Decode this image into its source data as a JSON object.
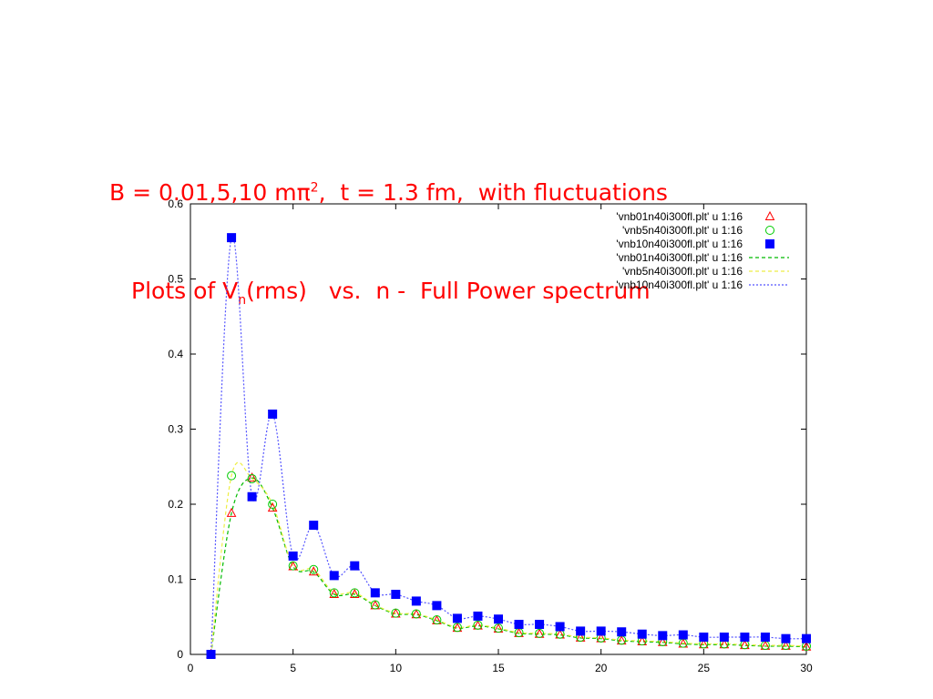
{
  "title": {
    "line1_prefix": "B = 0.01,5,10 m",
    "line1_pi": "π",
    "line1_sup": "2",
    "line1_suffix": ",  t = 1.3 fm,  with fluctuations",
    "line2_prefix": "Plots of V",
    "line2_sub": "n",
    "line2_suffix": "(rms)   vs.  n -  Full Power spectrum",
    "color": "#ff0000"
  },
  "chart_data": {
    "type": "scatter",
    "title": "",
    "xlabel": "",
    "ylabel": "",
    "xlim": [
      0,
      30
    ],
    "ylim": [
      0,
      0.6
    ],
    "xticks": [
      "0",
      "5",
      "10",
      "15",
      "20",
      "25",
      "30"
    ],
    "yticks": [
      "0",
      "0.1",
      "0.2",
      "0.3",
      "0.4",
      "0.5",
      "0.6"
    ],
    "grid": false,
    "legend_position": "top-right",
    "series": [
      {
        "name": "'vnb01n40i300fl.plt' u 1:16",
        "style": "points",
        "marker": "triangle",
        "color": "#ff0000",
        "x": [
          1,
          2,
          3,
          4,
          5,
          6,
          7,
          8,
          9,
          10,
          11,
          12,
          13,
          14,
          15,
          16,
          17,
          18,
          19,
          20,
          21,
          22,
          23,
          24,
          25,
          26,
          27,
          28,
          29,
          30
        ],
        "y": [
          0,
          0.188,
          0.235,
          0.195,
          0.117,
          0.11,
          0.08,
          0.08,
          0.065,
          0.054,
          0.053,
          0.045,
          0.035,
          0.038,
          0.034,
          0.028,
          0.027,
          0.026,
          0.022,
          0.021,
          0.018,
          0.017,
          0.016,
          0.014,
          0.013,
          0.013,
          0.012,
          0.011,
          0.011,
          0.01
        ]
      },
      {
        "name": "'vnb5n40i300fl.plt' u 1:16",
        "style": "points",
        "marker": "circle",
        "color": "#00cc00",
        "x": [
          1,
          2,
          3,
          4,
          5,
          6,
          7,
          8,
          9,
          10,
          11,
          12,
          13,
          14,
          15,
          16,
          17,
          18,
          19,
          20,
          21,
          22,
          23,
          24,
          25,
          26,
          27,
          28,
          29,
          30
        ],
        "y": [
          0,
          0.238,
          0.234,
          0.2,
          0.118,
          0.113,
          0.082,
          0.082,
          0.066,
          0.055,
          0.054,
          0.046,
          0.036,
          0.039,
          0.035,
          0.029,
          0.028,
          0.027,
          0.023,
          0.022,
          0.019,
          0.018,
          0.017,
          0.015,
          0.014,
          0.014,
          0.013,
          0.012,
          0.012,
          0.011
        ]
      },
      {
        "name": "'vnb10n40i300fl.plt' u 1:16",
        "style": "points",
        "marker": "square",
        "color": "#0000ff",
        "x": [
          1,
          2,
          3,
          4,
          5,
          6,
          7,
          8,
          9,
          10,
          11,
          12,
          13,
          14,
          15,
          16,
          17,
          18,
          19,
          20,
          21,
          22,
          23,
          24,
          25,
          26,
          27,
          28,
          29,
          30
        ],
        "y": [
          0,
          0.555,
          0.21,
          0.32,
          0.131,
          0.172,
          0.105,
          0.118,
          0.082,
          0.08,
          0.071,
          0.065,
          0.048,
          0.051,
          0.047,
          0.04,
          0.04,
          0.037,
          0.031,
          0.031,
          0.03,
          0.027,
          0.025,
          0.026,
          0.023,
          0.023,
          0.023,
          0.023,
          0.021,
          0.021
        ]
      },
      {
        "name": "'vnb01n40i300fl.plt' u 1:16",
        "style": "line",
        "dash": "dashed",
        "color": "#00bb00",
        "x": [
          1,
          2,
          3,
          4,
          5,
          6,
          7,
          8,
          9,
          10,
          11,
          12,
          13,
          14,
          15,
          16,
          17,
          18,
          19,
          20,
          21,
          22,
          23,
          24,
          25,
          26,
          27,
          28,
          29,
          30
        ],
        "y": [
          0,
          0.188,
          0.235,
          0.195,
          0.117,
          0.11,
          0.08,
          0.08,
          0.065,
          0.054,
          0.053,
          0.045,
          0.035,
          0.038,
          0.034,
          0.028,
          0.027,
          0.026,
          0.022,
          0.021,
          0.018,
          0.017,
          0.016,
          0.014,
          0.013,
          0.013,
          0.012,
          0.011,
          0.011,
          0.01
        ]
      },
      {
        "name": "'vnb5n40i300fl.plt' u 1:16",
        "style": "line",
        "dash": "dashed",
        "color": "#eeee44",
        "x": [
          1,
          2,
          3,
          4,
          5,
          6,
          7,
          8,
          9,
          10,
          11,
          12,
          13,
          14,
          15,
          16,
          17,
          18,
          19,
          20,
          21,
          22,
          23,
          24,
          25,
          26,
          27,
          28,
          29,
          30
        ],
        "y": [
          0,
          0.238,
          0.234,
          0.2,
          0.118,
          0.113,
          0.082,
          0.082,
          0.066,
          0.055,
          0.054,
          0.046,
          0.036,
          0.039,
          0.035,
          0.029,
          0.028,
          0.027,
          0.023,
          0.022,
          0.019,
          0.018,
          0.017,
          0.015,
          0.014,
          0.014,
          0.013,
          0.012,
          0.012,
          0.011
        ]
      },
      {
        "name": "'vnb10n40i300fl.plt' u 1:16",
        "style": "line",
        "dash": "dotted",
        "color": "#5555ff",
        "x": [
          1,
          2,
          3,
          4,
          5,
          6,
          7,
          8,
          9,
          10,
          11,
          12,
          13,
          14,
          15,
          16,
          17,
          18,
          19,
          20,
          21,
          22,
          23,
          24,
          25,
          26,
          27,
          28,
          29,
          30
        ],
        "y": [
          0,
          0.555,
          0.21,
          0.32,
          0.131,
          0.172,
          0.105,
          0.118,
          0.082,
          0.08,
          0.071,
          0.065,
          0.048,
          0.051,
          0.047,
          0.04,
          0.04,
          0.037,
          0.031,
          0.031,
          0.03,
          0.027,
          0.025,
          0.026,
          0.023,
          0.023,
          0.023,
          0.023,
          0.021,
          0.021
        ]
      }
    ]
  }
}
